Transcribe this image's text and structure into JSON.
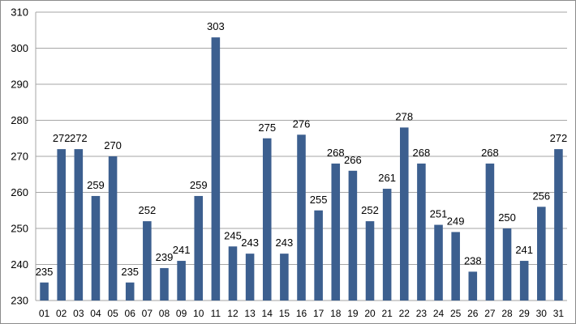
{
  "chart_data": {
    "type": "bar",
    "title": "",
    "xlabel": "",
    "ylabel": "",
    "categories": [
      "01",
      "02",
      "03",
      "04",
      "05",
      "06",
      "07",
      "08",
      "09",
      "10",
      "11",
      "12",
      "13",
      "14",
      "15",
      "16",
      "17",
      "18",
      "19",
      "20",
      "21",
      "22",
      "23",
      "24",
      "25",
      "26",
      "27",
      "28",
      "29",
      "30",
      "31"
    ],
    "values": [
      235,
      272,
      272,
      259,
      270,
      235,
      252,
      239,
      241,
      259,
      303,
      245,
      243,
      275,
      243,
      276,
      255,
      268,
      266,
      252,
      261,
      278,
      268,
      251,
      249,
      238,
      268,
      250,
      241,
      256,
      272
    ],
    "ylim": [
      230,
      310
    ],
    "yticks": [
      230,
      240,
      250,
      260,
      270,
      280,
      290,
      300,
      310
    ],
    "grid": true,
    "legend": "none",
    "bar_color": "#3c5f8f",
    "grid_color": "#a6a6a6",
    "data_labels": true
  }
}
